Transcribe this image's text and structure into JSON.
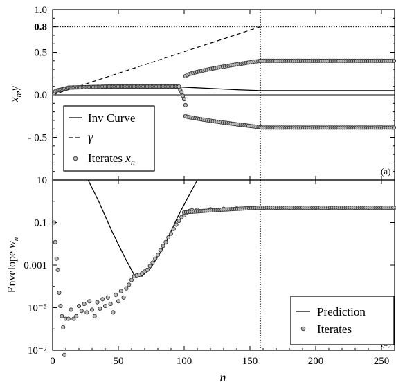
{
  "chart_data": [
    {
      "panel": "(a)",
      "type": "scatter",
      "xlabel": "n",
      "ylabel": "x_n, γ",
      "xlim": [
        0,
        260
      ],
      "ylim": [
        -1.0,
        1.0
      ],
      "y_tick_labels": [
        "1.0",
        "0.8",
        "0.5",
        "0.0",
        "- 0.5"
      ],
      "y_tick_values": [
        1.0,
        0.8,
        0.5,
        0.0,
        -0.5
      ],
      "reference_lines": {
        "horizontal": [
          0.8,
          0.0
        ],
        "vertical": [
          158
        ]
      },
      "legend": {
        "position": "bottom-left",
        "entries": [
          "Inv Curve",
          "γ",
          "Iterates x_n"
        ]
      },
      "series": [
        {
          "name": "Inv Curve",
          "style": "solid",
          "points": [
            [
              0,
              0.0
            ],
            [
              5,
              0.06
            ],
            [
              20,
              0.08
            ],
            [
              60,
              0.095
            ],
            [
              90,
              0.1
            ],
            [
              100,
              0.09
            ],
            [
              120,
              0.075
            ],
            [
              140,
              0.06
            ],
            [
              158,
              0.05
            ],
            [
              260,
              0.05
            ]
          ]
        },
        {
          "name": "γ",
          "style": "dashed",
          "points": [
            [
              0,
              0.0
            ],
            [
              158,
              0.8
            ]
          ]
        },
        {
          "name": "Iterates x_n",
          "style": "markers",
          "branches": [
            {
              "range": [
                0,
                97
              ],
              "shape": "rise-plateau",
              "values": [
                0.0,
                0.05,
                0.085,
                0.1
              ]
            },
            {
              "range": [
                97,
                102
              ],
              "shape": "split",
              "values": [
                0.03,
                -0.06,
                -0.12
              ]
            },
            {
              "range": [
                101,
                158
              ],
              "upper": [
                0.22,
                0.4
              ],
              "lower": [
                -0.25,
                -0.38
              ]
            },
            {
              "range": [
                158,
                260
              ],
              "upper": [
                0.4,
                0.4
              ],
              "lower": [
                -0.38,
                -0.38
              ]
            }
          ]
        }
      ]
    },
    {
      "panel": "(b)",
      "type": "scatter",
      "xlabel": "n",
      "ylabel": "Envelope w_n",
      "yscale": "log",
      "xlim": [
        0,
        260
      ],
      "ylim": [
        1e-07,
        10
      ],
      "x_tick_labels": [
        "0",
        "50",
        "100",
        "150",
        "200",
        "250"
      ],
      "x_tick_values": [
        0,
        50,
        100,
        150,
        200,
        250
      ],
      "y_tick_labels": [
        "10",
        "0.1",
        "0.001",
        "10⁻⁵",
        "10⁻⁷"
      ],
      "y_tick_values": [
        10,
        0.1,
        0.001,
        1e-05,
        1e-07
      ],
      "reference_lines": {
        "vertical": [
          158
        ]
      },
      "legend": {
        "position": "bottom-right",
        "entries": [
          "Prediction",
          "Iterates"
        ]
      },
      "series": [
        {
          "name": "Prediction",
          "style": "solid",
          "points": [
            [
              27,
              10
            ],
            [
              35,
              1.0
            ],
            [
              45,
              0.04
            ],
            [
              55,
              0.0022
            ],
            [
              62,
              0.00035
            ],
            [
              68,
              0.0003
            ],
            [
              75,
              0.0008
            ],
            [
              85,
              0.008
            ],
            [
              95,
              0.18
            ],
            [
              102,
              1.2
            ],
            [
              110,
              10
            ]
          ]
        },
        {
          "name": "Iterates",
          "style": "markers",
          "points": [
            [
              1,
              0.1
            ],
            [
              2,
              0.012
            ],
            [
              3,
              0.002
            ],
            [
              4,
              0.0006
            ],
            [
              5,
              5e-05
            ],
            [
              6,
              1.2e-05
            ],
            [
              7,
              4e-06
            ],
            [
              8,
              1.2e-06
            ],
            [
              9,
              6e-08
            ],
            [
              10,
              3e-06
            ],
            [
              12,
              3e-06
            ],
            [
              14,
              8e-06
            ],
            [
              16,
              3e-06
            ],
            [
              18,
              4e-06
            ],
            [
              20,
              1.2e-05
            ],
            [
              22,
              7e-06
            ],
            [
              24,
              1.5e-05
            ],
            [
              26,
              6e-06
            ],
            [
              28,
              2e-05
            ],
            [
              30,
              8e-06
            ],
            [
              32,
              4e-06
            ],
            [
              34,
              1.8e-05
            ],
            [
              36,
              9e-06
            ],
            [
              38,
              2.5e-05
            ],
            [
              40,
              1.2e-05
            ],
            [
              42,
              3e-05
            ],
            [
              44,
              1.5e-05
            ],
            [
              46,
              6e-06
            ],
            [
              48,
              4e-05
            ],
            [
              50,
              2e-05
            ],
            [
              52,
              6e-05
            ],
            [
              54,
              3e-05
            ],
            [
              56,
              8e-05
            ],
            [
              58,
              0.00012
            ],
            [
              60,
              0.0002
            ],
            [
              62,
              0.0003
            ],
            [
              64,
              0.00033
            ],
            [
              66,
              0.00035
            ],
            [
              68,
              0.0004
            ],
            [
              70,
              0.0005
            ],
            [
              72,
              0.0006
            ],
            [
              74,
              0.0009
            ],
            [
              76,
              0.0013
            ],
            [
              78,
              0.002
            ],
            [
              80,
              0.003
            ],
            [
              82,
              0.005
            ],
            [
              84,
              0.008
            ],
            [
              86,
              0.012
            ],
            [
              88,
              0.02
            ],
            [
              90,
              0.03
            ],
            [
              92,
              0.05
            ],
            [
              94,
              0.08
            ],
            [
              96,
              0.12
            ],
            [
              98,
              0.18
            ],
            [
              100,
              0.22
            ],
            [
              102,
              0.3
            ],
            [
              104,
              0.35
            ],
            [
              106,
              0.38
            ],
            [
              110,
              0.4
            ],
            [
              120,
              0.42
            ],
            [
              130,
              0.44
            ],
            [
              140,
              0.46
            ],
            [
              150,
              0.48
            ],
            [
              158,
              0.5
            ],
            [
              170,
              0.5
            ],
            [
              180,
              0.5
            ],
            [
              190,
              0.5
            ],
            [
              200,
              0.5
            ],
            [
              210,
              0.5
            ],
            [
              220,
              0.5
            ],
            [
              230,
              0.5
            ],
            [
              240,
              0.5
            ],
            [
              250,
              0.5
            ],
            [
              260,
              0.5
            ]
          ]
        }
      ]
    }
  ]
}
